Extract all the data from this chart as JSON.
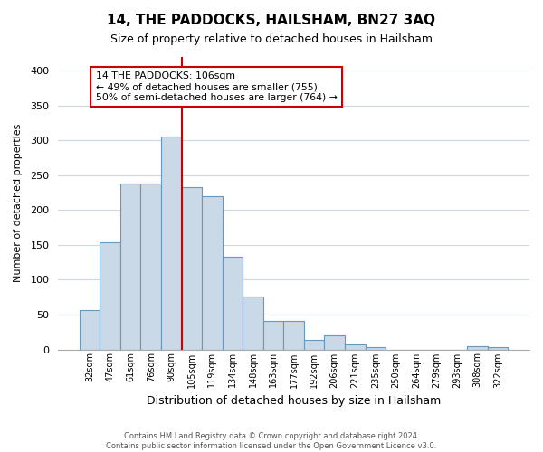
{
  "title": "14, THE PADDOCKS, HAILSHAM, BN27 3AQ",
  "subtitle": "Size of property relative to detached houses in Hailsham",
  "xlabel": "Distribution of detached houses by size in Hailsham",
  "ylabel": "Number of detached properties",
  "bar_labels": [
    "32sqm",
    "47sqm",
    "61sqm",
    "76sqm",
    "90sqm",
    "105sqm",
    "119sqm",
    "134sqm",
    "148sqm",
    "163sqm",
    "177sqm",
    "192sqm",
    "206sqm",
    "221sqm",
    "235sqm",
    "250sqm",
    "264sqm",
    "279sqm",
    "293sqm",
    "308sqm",
    "322sqm"
  ],
  "bar_values": [
    57,
    153,
    238,
    238,
    305,
    233,
    220,
    133,
    76,
    41,
    41,
    13,
    20,
    7,
    3,
    0,
    0,
    0,
    0,
    4,
    3
  ],
  "bar_color": "#c9d9e8",
  "bar_edge_color": "#6699bb",
  "vline_x_index": 5,
  "vline_color": "#cc0000",
  "annotation_text": "14 THE PADDOCKS: 106sqm\n← 49% of detached houses are smaller (755)\n50% of semi-detached houses are larger (764) →",
  "annotation_box_edge_color": "#cc0000",
  "ylim": [
    0,
    420
  ],
  "yticks": [
    0,
    50,
    100,
    150,
    200,
    250,
    300,
    350,
    400
  ],
  "footer_line1": "Contains HM Land Registry data © Crown copyright and database right 2024.",
  "footer_line2": "Contains public sector information licensed under the Open Government Licence v3.0.",
  "background_color": "#ffffff",
  "grid_color": "#cdd8e3"
}
